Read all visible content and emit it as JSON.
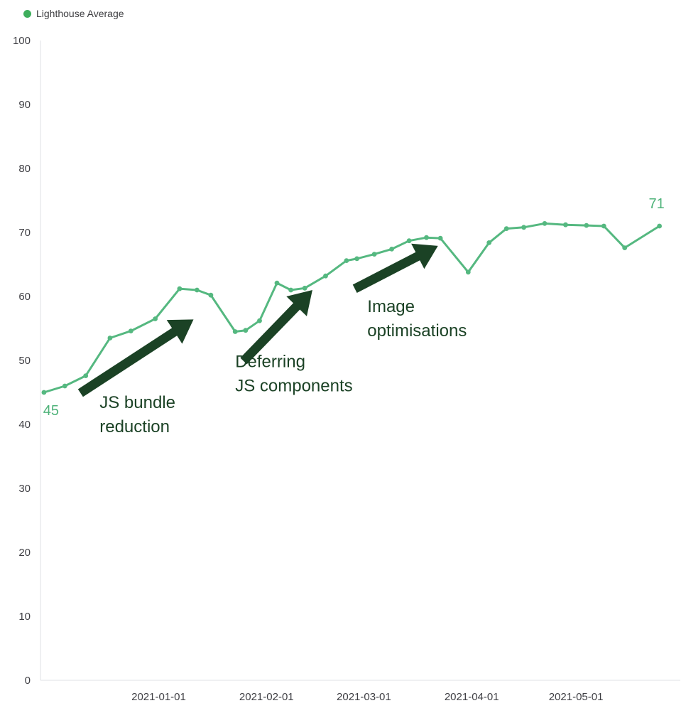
{
  "legend": {
    "label": "Lighthouse Average"
  },
  "colors": {
    "line": "#55b880",
    "marker": "#55b880",
    "value_label": "#4fb37a",
    "legend_dot": "#3eae5c",
    "annotation": "#1b4225",
    "axis_line": "#dfe0e4",
    "tick_text": "#3f3f44"
  },
  "chart_data": {
    "type": "line",
    "title": "",
    "xlabel": "",
    "ylabel": "",
    "ylim": [
      0,
      100
    ],
    "xlim": [
      0,
      184
    ],
    "grid": false,
    "legend_position": "top-left",
    "y_ticks": [
      0,
      10,
      20,
      30,
      40,
      50,
      60,
      70,
      80,
      90,
      100
    ],
    "x_ticks": [
      {
        "x": 34,
        "label": "2021-01-01"
      },
      {
        "x": 65,
        "label": "2021-02-01"
      },
      {
        "x": 93,
        "label": "2021-03-01"
      },
      {
        "x": 124,
        "label": "2021-04-01"
      },
      {
        "x": 154,
        "label": "2021-05-01"
      }
    ],
    "series": [
      {
        "name": "Lighthouse Average",
        "points": [
          {
            "x": 1,
            "y": 45
          },
          {
            "x": 7,
            "y": 46
          },
          {
            "x": 13,
            "y": 47.6
          },
          {
            "x": 20,
            "y": 53.5
          },
          {
            "x": 26,
            "y": 54.6
          },
          {
            "x": 33,
            "y": 56.5
          },
          {
            "x": 40,
            "y": 61.2
          },
          {
            "x": 45,
            "y": 61
          },
          {
            "x": 49,
            "y": 60.2
          },
          {
            "x": 56,
            "y": 54.5
          },
          {
            "x": 59,
            "y": 54.7
          },
          {
            "x": 63,
            "y": 56.2
          },
          {
            "x": 68,
            "y": 62.1
          },
          {
            "x": 72,
            "y": 61
          },
          {
            "x": 76,
            "y": 61.3
          },
          {
            "x": 82,
            "y": 63.2
          },
          {
            "x": 88,
            "y": 65.6
          },
          {
            "x": 91,
            "y": 65.9
          },
          {
            "x": 96,
            "y": 66.6
          },
          {
            "x": 101,
            "y": 67.4
          },
          {
            "x": 106,
            "y": 68.7
          },
          {
            "x": 111,
            "y": 69.2
          },
          {
            "x": 115,
            "y": 69.1
          },
          {
            "x": 123,
            "y": 63.8
          },
          {
            "x": 129,
            "y": 68.4
          },
          {
            "x": 134,
            "y": 70.6
          },
          {
            "x": 139,
            "y": 70.8
          },
          {
            "x": 145,
            "y": 71.4
          },
          {
            "x": 151,
            "y": 71.2
          },
          {
            "x": 157,
            "y": 71.1
          },
          {
            "x": 162,
            "y": 71
          },
          {
            "x": 168,
            "y": 67.6
          },
          {
            "x": 178,
            "y": 71
          }
        ]
      }
    ],
    "start_label": "45",
    "end_label": "71",
    "annotations": [
      {
        "lines": [
          "JS bundle",
          "reduction"
        ],
        "text_pos": {
          "x": 17,
          "y": 45.0
        },
        "arrow": {
          "x1": 11.5,
          "y1": 44.9,
          "x2": 44,
          "y2": 56.4
        }
      },
      {
        "lines": [
          "Deferring",
          "JS components"
        ],
        "text_pos": {
          "x": 56,
          "y": 51.4
        },
        "arrow": {
          "x1": 58.4,
          "y1": 49.9,
          "x2": 78.2,
          "y2": 61.0
        }
      },
      {
        "lines": [
          "Image",
          "optimisations"
        ],
        "text_pos": {
          "x": 94,
          "y": 60.0
        },
        "arrow": {
          "x1": 90.4,
          "y1": 61.2,
          "x2": 114.3,
          "y2": 67.9
        }
      }
    ]
  }
}
